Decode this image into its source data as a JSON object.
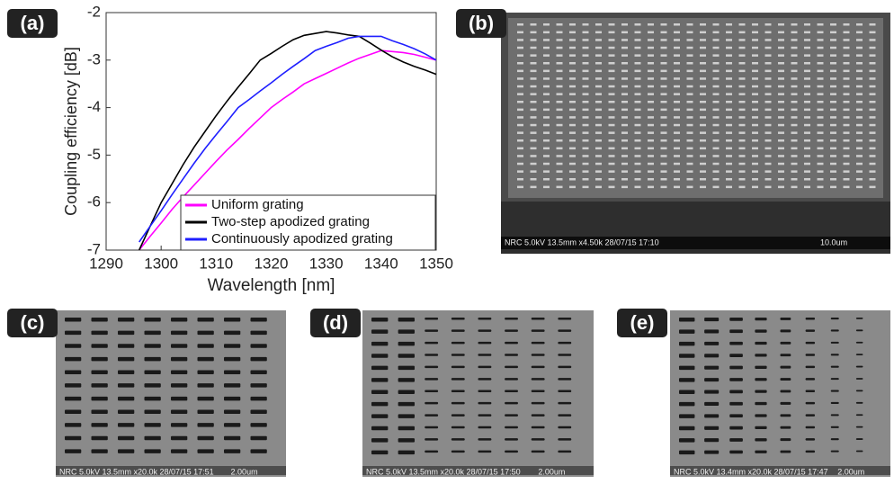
{
  "chart_data": {
    "type": "line",
    "panel_label": "(a)",
    "x_label": "Wavelength [nm]",
    "y_label": "Coupling efficiency [dB]",
    "x": [
      1296,
      1298,
      1300,
      1302,
      1304,
      1306,
      1308,
      1310,
      1312,
      1314,
      1316,
      1318,
      1320,
      1322,
      1324,
      1326,
      1328,
      1330,
      1332,
      1334,
      1336,
      1338,
      1340,
      1342,
      1344,
      1346,
      1348,
      1350
    ],
    "series": [
      {
        "name": "Uniform grating",
        "color": "#ff00ff",
        "values": [
          -7,
          -6.71,
          -6.43,
          -6.14,
          -5.88,
          -5.63,
          -5.38,
          -5.13,
          -4.89,
          -4.67,
          -4.44,
          -4.22,
          -4.0,
          -3.83,
          -3.67,
          -3.5,
          -3.39,
          -3.28,
          -3.17,
          -3.06,
          -2.96,
          -2.88,
          -2.8,
          -2.82,
          -2.84,
          -2.88,
          -2.94,
          -3.0
        ]
      },
      {
        "name": "Two-step apodized grating",
        "color": "#000000",
        "values": [
          -7,
          -6.5,
          -6,
          -5.6,
          -5.2,
          -4.83,
          -4.5,
          -4.17,
          -3.86,
          -3.57,
          -3.29,
          -3.0,
          -2.86,
          -2.71,
          -2.57,
          -2.48,
          -2.44,
          -2.4,
          -2.43,
          -2.47,
          -2.5,
          -2.64,
          -2.79,
          -2.93,
          -3.04,
          -3.13,
          -3.21,
          -3.3
        ]
      },
      {
        "name": "Continuously apodized grating",
        "color": "#1f1fff",
        "values": [
          -6.83,
          -6.5,
          -6.17,
          -5.83,
          -5.5,
          -5.17,
          -4.86,
          -4.57,
          -4.29,
          -4.0,
          -3.83,
          -3.65,
          -3.48,
          -3.3,
          -3.13,
          -2.97,
          -2.8,
          -2.71,
          -2.63,
          -2.54,
          -2.5,
          -2.5,
          -2.5,
          -2.59,
          -2.67,
          -2.76,
          -2.87,
          -3.0
        ]
      }
    ],
    "xlim": [
      1290,
      1350
    ],
    "xticks": [
      1290,
      1300,
      1310,
      1320,
      1330,
      1340,
      1350
    ],
    "ylim": [
      -7,
      -2
    ],
    "yticks": [
      -7,
      -6,
      -5,
      -4,
      -3,
      -2
    ]
  },
  "panels": [
    {
      "label": "(b)",
      "info": "NRC 5.0kV 13.5mm x4.50k 28/07/15 17:10",
      "scale": "10.0um"
    },
    {
      "label": "(c)",
      "info": "NRC 5.0kV 13.5mm x20.0k 28/07/15 17:51",
      "scale": "2.00um"
    },
    {
      "label": "(d)",
      "info": "NRC 5.0kV 13.5mm x20.0k 28/07/15 17:50",
      "scale": "2.00um"
    },
    {
      "label": "(e)",
      "info": "NRC 5.0kV 13.4mm x20.0k 28/07/15 17:47",
      "scale": "2.00um"
    }
  ]
}
